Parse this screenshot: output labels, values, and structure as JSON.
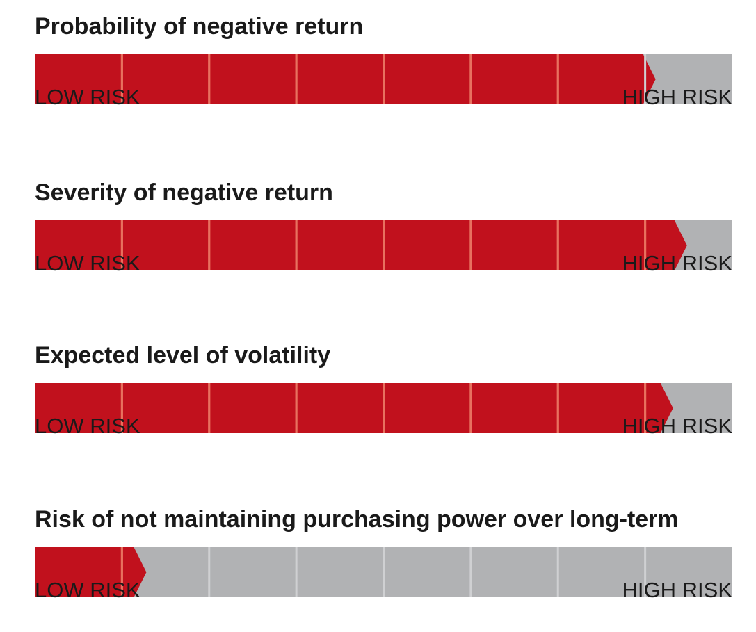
{
  "chart_data": {
    "type": "bar",
    "colors": {
      "fill": "#c1111d",
      "track": "#b1b2b4",
      "fill_divider": "#e8715f",
      "track_divider": "#cfd0d2"
    },
    "segments": 8,
    "scale_labels": {
      "low": "LOW RISK",
      "high": "HIGH RISK"
    },
    "gauges": [
      {
        "title": "Probability of negative return",
        "value": 0.89
      },
      {
        "title": "Severity of negative return",
        "value": 0.935
      },
      {
        "title": "Expected level of volatility",
        "value": 0.915
      },
      {
        "title": "Risk of not maintaining purchasing power over long-term",
        "value": 0.16
      }
    ]
  }
}
